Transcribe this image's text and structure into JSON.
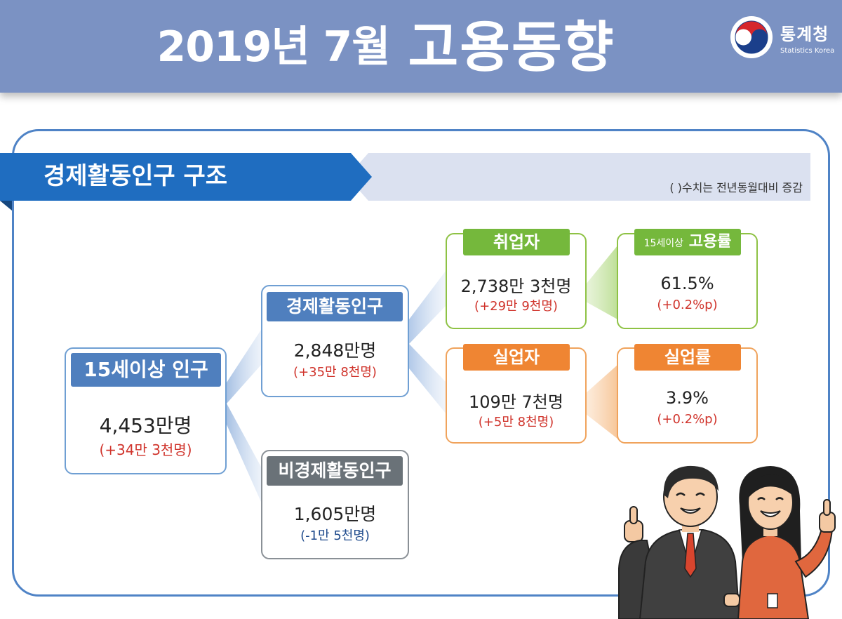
{
  "header": {
    "title_date": "2019년 7월",
    "title_main": "고용동향"
  },
  "logo": {
    "name_ko": "통계청",
    "name_en": "Statistics Korea",
    "icon": "taegeuk-icon"
  },
  "section": {
    "title": "경제활동인구 구조",
    "note": "(  )수치는 전년동월대비 증감"
  },
  "nodes": {
    "population_15plus": {
      "label": "15세이상 인구",
      "value": "4,453만명",
      "change": "(+34만 3천명)"
    },
    "economically_active": {
      "label": "경제활동인구",
      "value": "2,848만명",
      "change": "(+35만 8천명)"
    },
    "economically_inactive": {
      "label": "비경제활동인구",
      "value": "1,605만명",
      "change": "(-1만 5천명)"
    },
    "employed": {
      "label": "취업자",
      "value": "2,738만 3천명",
      "change": "(+29만 9천명)"
    },
    "unemployed": {
      "label": "실업자",
      "value": "109만 7천명",
      "change": "(+5만 8천명)"
    },
    "employment_rate": {
      "label_prefix": "15세이상",
      "label": "고용률",
      "value": "61.5%",
      "change": "(+0.2%p)"
    },
    "unemployment_rate": {
      "label": "실업률",
      "value": "3.9%",
      "change": "(+0.2%p)"
    }
  },
  "colors": {
    "header": "#7b92c3",
    "banner": "#1f6dc0",
    "blue": "#4f7fbe",
    "gray": "#6a7278",
    "green": "#75b83c",
    "orange": "#ef8533",
    "increase": "#d0342c",
    "decrease": "#1e4a8c"
  },
  "illustration": "business-people-thumbs-up"
}
